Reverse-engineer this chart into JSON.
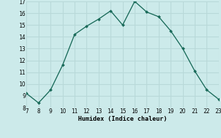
{
  "x": [
    7,
    8,
    9,
    10,
    11,
    12,
    13,
    14,
    15,
    16,
    17,
    18,
    19,
    20,
    21,
    22,
    23
  ],
  "y": [
    9.2,
    8.4,
    9.5,
    11.6,
    14.2,
    14.9,
    15.5,
    16.2,
    15.0,
    17.0,
    16.1,
    15.7,
    14.5,
    13.0,
    11.1,
    9.5,
    8.7
  ],
  "xlim": [
    7,
    23
  ],
  "ylim": [
    8,
    17
  ],
  "yticks": [
    8,
    9,
    10,
    11,
    12,
    13,
    14,
    15,
    16,
    17
  ],
  "xticks": [
    7,
    8,
    9,
    10,
    11,
    12,
    13,
    14,
    15,
    16,
    17,
    18,
    19,
    20,
    21,
    22,
    23
  ],
  "xlabel": "Humidex (Indice chaleur)",
  "line_color": "#1a6b5a",
  "marker": "D",
  "marker_size": 2,
  "bg_color": "#cceaea",
  "grid_color": "#b8d8d8",
  "title": ""
}
